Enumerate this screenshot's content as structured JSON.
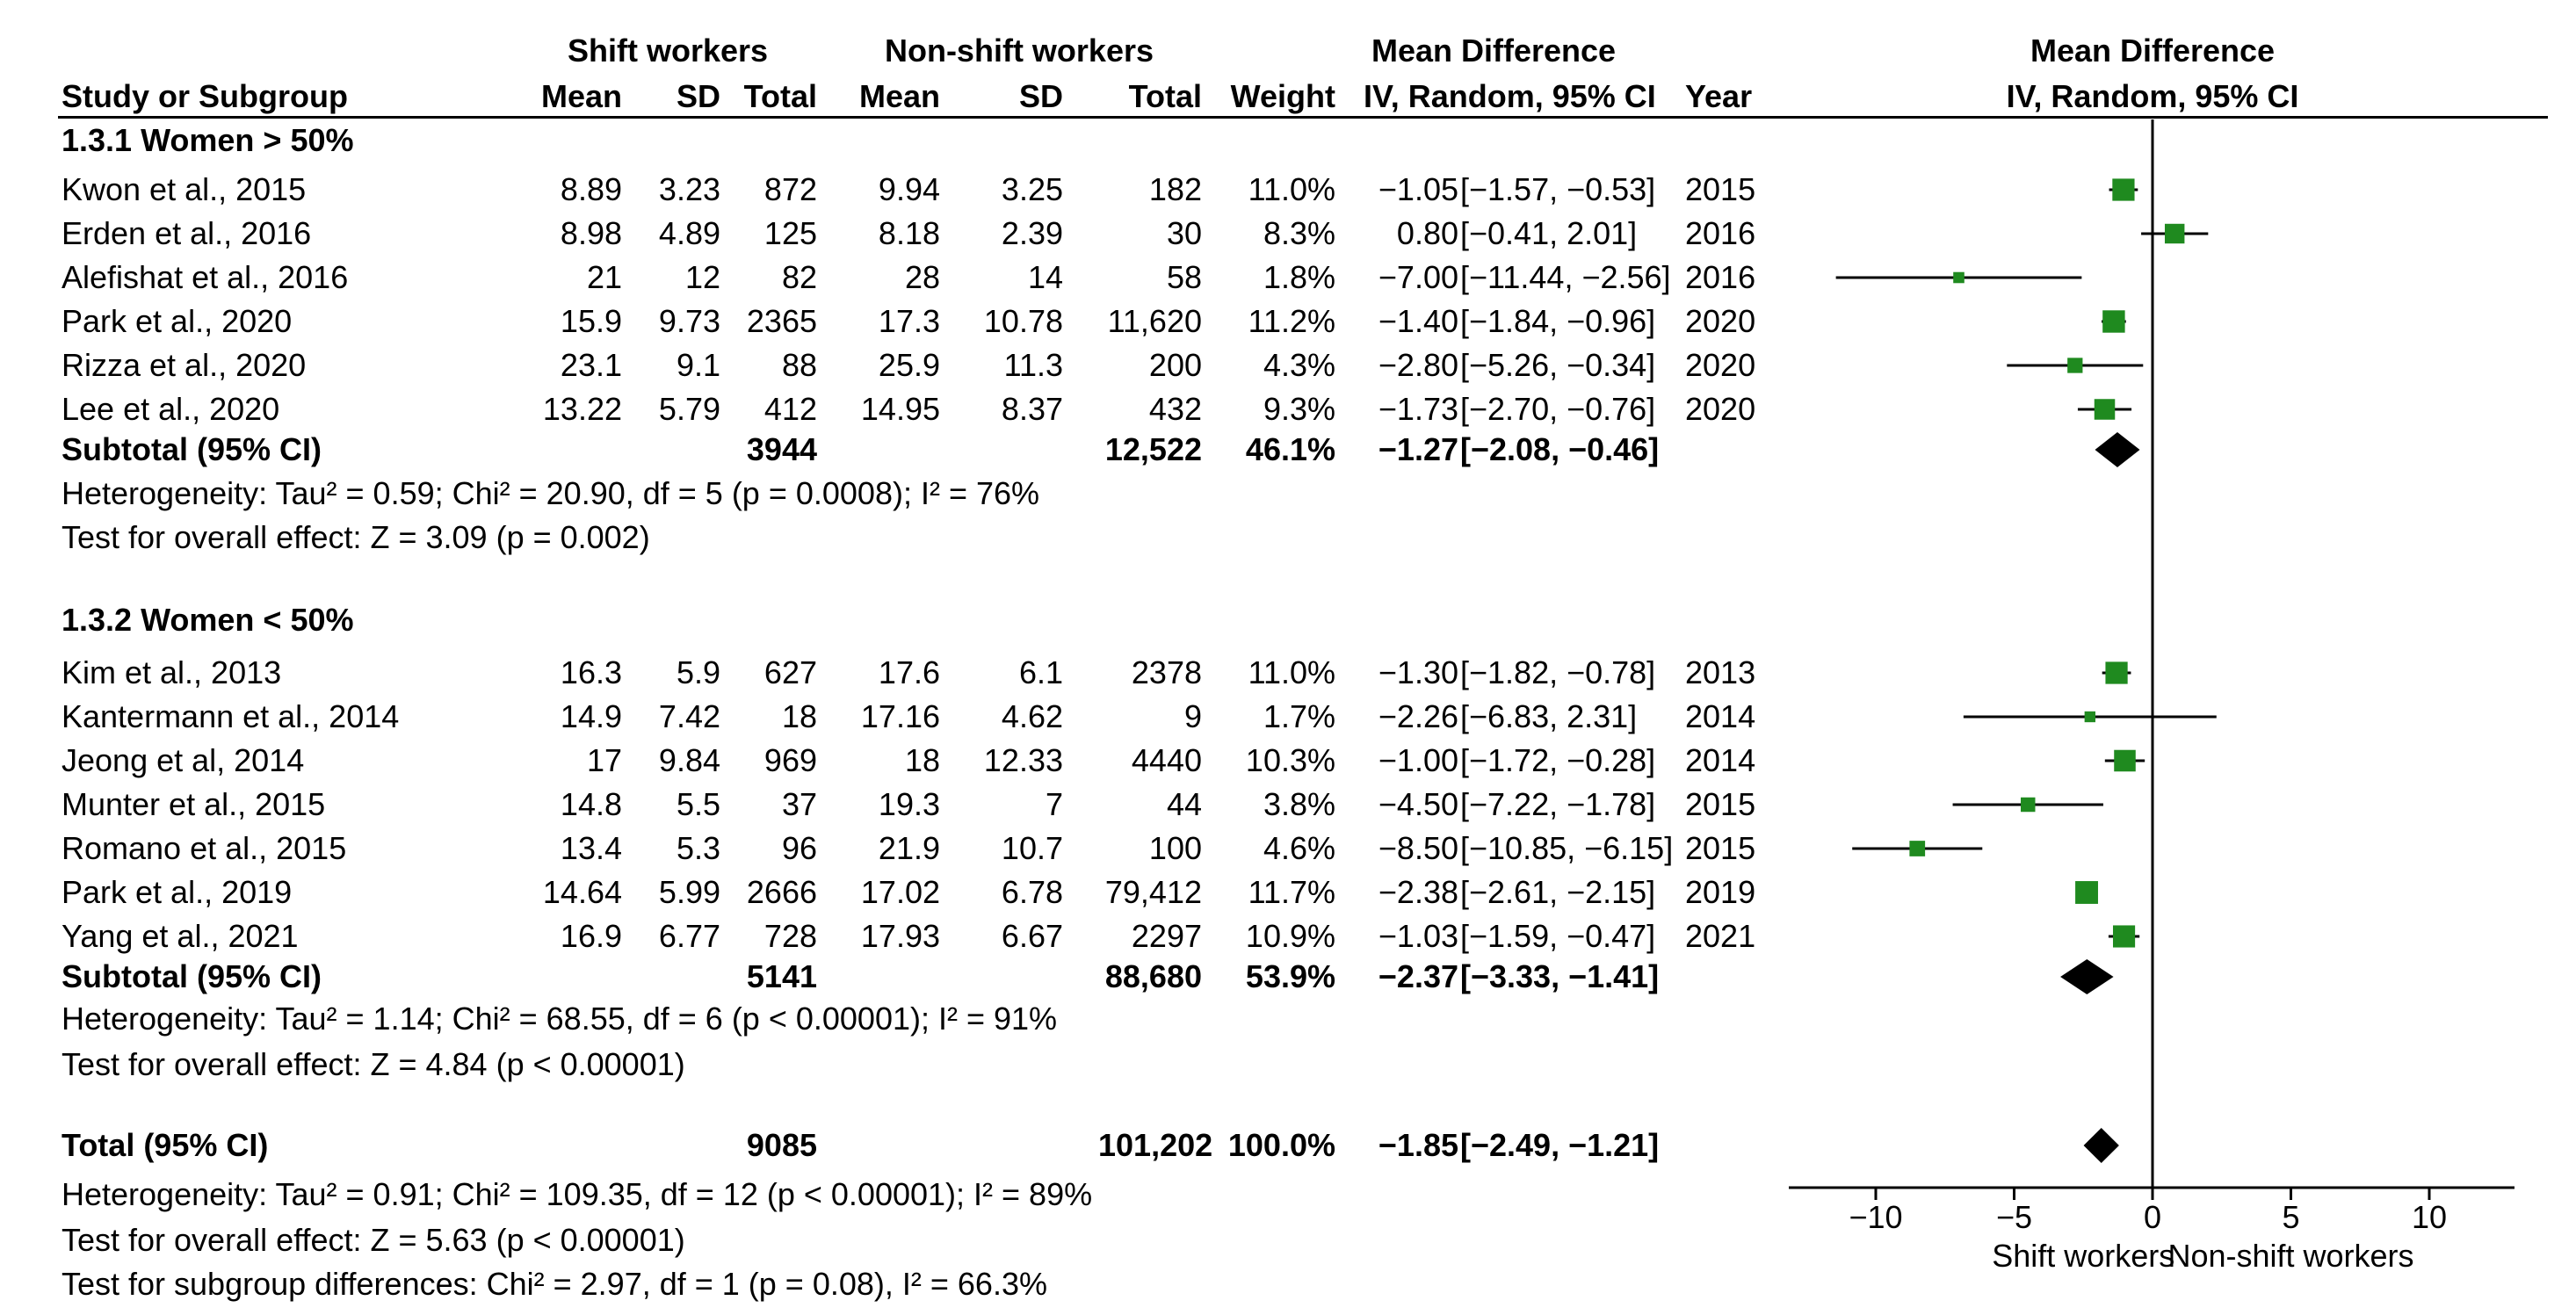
{
  "header": {
    "shift_group": "Shift workers",
    "nonshift_group": "Non-shift workers",
    "md_title": "Mean Difference",
    "plot_title": "Mean Difference",
    "study_col": "Study or Subgroup",
    "mean1": "Mean",
    "sd1": "SD",
    "total1": "Total",
    "mean2": "Mean",
    "sd2": "SD",
    "total2": "Total",
    "weight": "Weight",
    "md_method": "IV, Random, 95% CI",
    "year": "Year",
    "plot_method": "IV, Random, 95% CI"
  },
  "subgroups": [
    {
      "title": "1.3.1 Women > 50%",
      "studies": [
        {
          "name": "Kwon et al., 2015",
          "m1": "8.89",
          "sd1": "3.23",
          "n1": "872",
          "m2": "9.94",
          "sd2": "3.25",
          "n2": "182",
          "weight": "11.0%",
          "md": "−1.05",
          "ci": "[−1.57, −0.53]",
          "year": "2015"
        },
        {
          "name": "Erden et al., 2016",
          "m1": "8.98",
          "sd1": "4.89",
          "n1": "125",
          "m2": "8.18",
          "sd2": "2.39",
          "n2": "30",
          "weight": "8.3%",
          "md": "0.80",
          "ci": "[−0.41,  2.01]",
          "year": "2016"
        },
        {
          "name": "Alefishat et al., 2016",
          "m1": "21",
          "sd1": "12",
          "n1": "82",
          "m2": "28",
          "sd2": "14",
          "n2": "58",
          "weight": "1.8%",
          "md": "−7.00",
          "ci": "[−11.44, −2.56]",
          "year": "2016"
        },
        {
          "name": "Park et al., 2020",
          "m1": "15.9",
          "sd1": "9.73",
          "n1": "2365",
          "m2": "17.3",
          "sd2": "10.78",
          "n2": "11,620",
          "weight": "11.2%",
          "md": "−1.40",
          "ci": "[−1.84, −0.96]",
          "year": "2020"
        },
        {
          "name": "Rizza et al., 2020",
          "m1": "23.1",
          "sd1": "9.1",
          "n1": "88",
          "m2": "25.9",
          "sd2": "11.3",
          "n2": "200",
          "weight": "4.3%",
          "md": "−2.80",
          "ci": "[−5.26, −0.34]",
          "year": "2020"
        },
        {
          "name": "Lee et al., 2020",
          "m1": "13.22",
          "sd1": "5.79",
          "n1": "412",
          "m2": "14.95",
          "sd2": "8.37",
          "n2": "432",
          "weight": "9.3%",
          "md": "−1.73",
          "ci": "[−2.70, −0.76]",
          "year": "2020"
        }
      ],
      "subtotal": {
        "label": "Subtotal (95% CI)",
        "n1": "3944",
        "n2": "12,522",
        "weight": "46.1%",
        "md": "−1.27",
        "ci": "[−2.08, −0.46]"
      },
      "heterogeneity": "Heterogeneity: Tau² = 0.59; Chi² = 20.90, df = 5 (p = 0.0008); I² = 76%",
      "overall": "Test for overall effect: Z = 3.09 (p = 0.002)"
    },
    {
      "title": "1.3.2 Women < 50%",
      "studies": [
        {
          "name": "Kim et al., 2013",
          "m1": "16.3",
          "sd1": "5.9",
          "n1": "627",
          "m2": "17.6",
          "sd2": "6.1",
          "n2": "2378",
          "weight": "11.0%",
          "md": "−1.30",
          "ci": "[−1.82, −0.78]",
          "year": "2013"
        },
        {
          "name": "Kantermann et al., 2014",
          "m1": "14.9",
          "sd1": "7.42",
          "n1": "18",
          "m2": "17.16",
          "sd2": "4.62",
          "n2": "9",
          "weight": "1.7%",
          "md": "−2.26",
          "ci": "[−6.83,  2.31]",
          "year": "2014"
        },
        {
          "name": "Jeong et al, 2014",
          "m1": "17",
          "sd1": "9.84",
          "n1": "969",
          "m2": "18",
          "sd2": "12.33",
          "n2": "4440",
          "weight": "10.3%",
          "md": "−1.00",
          "ci": "[−1.72, −0.28]",
          "year": "2014"
        },
        {
          "name": "Munter et al., 2015",
          "m1": "14.8",
          "sd1": "5.5",
          "n1": "37",
          "m2": "19.3",
          "sd2": "7",
          "n2": "44",
          "weight": "3.8%",
          "md": "−4.50",
          "ci": "[−7.22, −1.78]",
          "year": "2015"
        },
        {
          "name": "Romano et al., 2015",
          "m1": "13.4",
          "sd1": "5.3",
          "n1": "96",
          "m2": "21.9",
          "sd2": "10.7",
          "n2": "100",
          "weight": "4.6%",
          "md": "−8.50",
          "ci": "[−10.85, −6.15]",
          "year": "2015"
        },
        {
          "name": "Park et al., 2019",
          "m1": "14.64",
          "sd1": "5.99",
          "n1": "2666",
          "m2": "17.02",
          "sd2": "6.78",
          "n2": "79,412",
          "weight": "11.7%",
          "md": "−2.38",
          "ci": "[−2.61, −2.15]",
          "year": "2019"
        },
        {
          "name": "Yang et al., 2021",
          "m1": "16.9",
          "sd1": "6.77",
          "n1": "728",
          "m2": "17.93",
          "sd2": "6.67",
          "n2": "2297",
          "weight": "10.9%",
          "md": "−1.03",
          "ci": "[−1.59, −0.47]",
          "year": "2021"
        }
      ],
      "subtotal": {
        "label": "Subtotal (95% CI)",
        "n1": "5141",
        "n2": "88,680",
        "weight": "53.9%",
        "md": "−2.37",
        "ci": "[−3.33, −1.41]"
      },
      "heterogeneity": "Heterogeneity: Tau² = 1.14; Chi² = 68.55, df = 6 (p < 0.00001); I² = 91%",
      "overall": "Test for overall effect: Z = 4.84 (p < 0.00001)"
    }
  ],
  "total": {
    "label": "Total (95% CI)",
    "n1": "9085",
    "n2": "101,202",
    "weight": "100.0%",
    "md": "−1.85",
    "ci": "[−2.49, −1.21]"
  },
  "footer": {
    "heterogeneity": "Heterogeneity: Tau² = 0.91; Chi² = 109.35, df = 12 (p < 0.00001); I² = 89%",
    "overall": "Test for overall effect: Z = 5.63 (p < 0.00001)",
    "subgroup_diff": "Test for subgroup differences: Chi² = 2.97, df = 1 (p = 0.08), I² = 66.3%"
  },
  "colors": {
    "square": "#1f8a1f",
    "line": "#000000",
    "diamond": "#000000"
  },
  "chart_data": {
    "type": "forest",
    "title": "Mean Difference IV, Random, 95% CI",
    "xlabel_left": "Shift workers",
    "xlabel_right": "Non-shift workers",
    "xlim": [
      -13,
      13.5
    ],
    "ticks": [
      -10,
      -5,
      0,
      5,
      10
    ],
    "tick_labels": [
      "−10",
      "−5",
      "0",
      "5",
      "10"
    ],
    "studies": [
      {
        "name": "Kwon et al., 2015",
        "md": -1.05,
        "lo": -1.57,
        "hi": -0.53,
        "weight": 11.0
      },
      {
        "name": "Erden et al., 2016",
        "md": 0.8,
        "lo": -0.41,
        "hi": 2.01,
        "weight": 8.3
      },
      {
        "name": "Alefishat et al., 2016",
        "md": -7.0,
        "lo": -11.44,
        "hi": -2.56,
        "weight": 1.8
      },
      {
        "name": "Park et al., 2020",
        "md": -1.4,
        "lo": -1.84,
        "hi": -0.96,
        "weight": 11.2
      },
      {
        "name": "Rizza et al., 2020",
        "md": -2.8,
        "lo": -5.26,
        "hi": -0.34,
        "weight": 4.3
      },
      {
        "name": "Lee et al., 2020",
        "md": -1.73,
        "lo": -2.7,
        "hi": -0.76,
        "weight": 9.3
      },
      {
        "name": "Kim et al., 2013",
        "md": -1.3,
        "lo": -1.82,
        "hi": -0.78,
        "weight": 11.0
      },
      {
        "name": "Kantermann et al., 2014",
        "md": -2.26,
        "lo": -6.83,
        "hi": 2.31,
        "weight": 1.7
      },
      {
        "name": "Jeong et al, 2014",
        "md": -1.0,
        "lo": -1.72,
        "hi": -0.28,
        "weight": 10.3
      },
      {
        "name": "Munter et al., 2015",
        "md": -4.5,
        "lo": -7.22,
        "hi": -1.78,
        "weight": 3.8
      },
      {
        "name": "Romano et al., 2015",
        "md": -8.5,
        "lo": -10.85,
        "hi": -6.15,
        "weight": 4.6
      },
      {
        "name": "Park et al., 2019",
        "md": -2.38,
        "lo": -2.61,
        "hi": -2.15,
        "weight": 11.7
      },
      {
        "name": "Yang et al., 2021",
        "md": -1.03,
        "lo": -1.59,
        "hi": -0.47,
        "weight": 10.9
      }
    ],
    "pooled": [
      {
        "name": "Subtotal 1.3.1",
        "md": -1.27,
        "lo": -2.08,
        "hi": -0.46
      },
      {
        "name": "Subtotal 1.3.2",
        "md": -2.37,
        "lo": -3.33,
        "hi": -1.41
      },
      {
        "name": "Total",
        "md": -1.85,
        "lo": -2.49,
        "hi": -1.21
      }
    ]
  }
}
